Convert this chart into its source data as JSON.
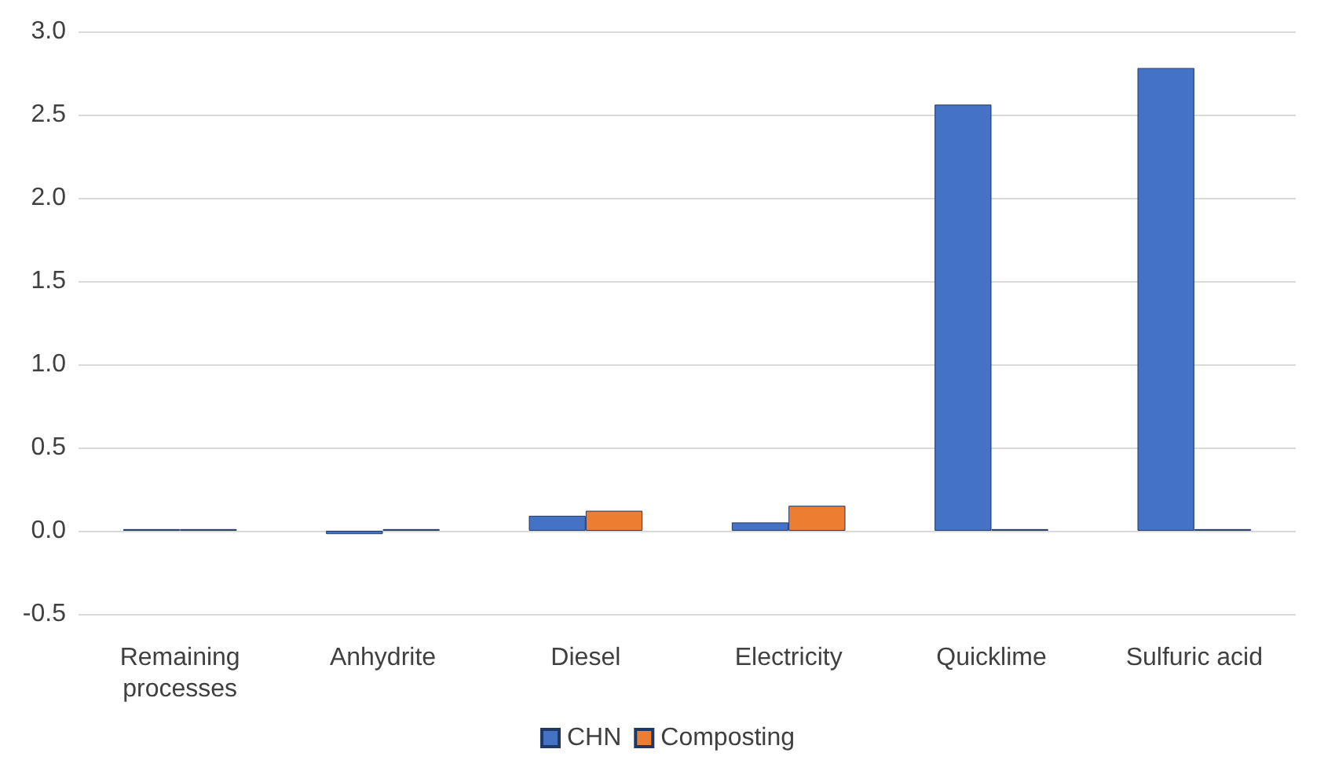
{
  "chart_data": {
    "type": "bar",
    "categories": [
      "Remaining\nprocesses",
      "Anhydrite",
      "Diesel",
      "Electricity",
      "Quicklime",
      "Sulfuric acid"
    ],
    "series": [
      {
        "name": "CHN",
        "color": "#4472c4",
        "values": [
          0.01,
          -0.02,
          0.09,
          0.05,
          2.56,
          2.78
        ]
      },
      {
        "name": "Composting",
        "color": "#ed7d31",
        "values": [
          0.01,
          0.01,
          0.12,
          0.15,
          0.01,
          0.01
        ]
      }
    ],
    "ylim": [
      -0.5,
      3.0
    ],
    "yticks": [
      -0.5,
      {
        "value": 0,
        "label": "0.0"
      },
      0.5,
      {
        "value": 1,
        "label": "1.0"
      },
      1.5,
      {
        "value": 2,
        "label": "2.0"
      },
      2.5,
      {
        "value": 3,
        "label": "3.0"
      }
    ],
    "grid": "y",
    "legend": "bottom"
  }
}
